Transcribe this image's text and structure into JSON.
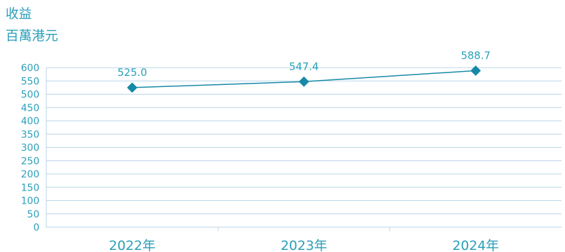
{
  "chart_data": {
    "type": "line",
    "title": "收益",
    "subtitle": "百萬港元",
    "categories": [
      "2022年",
      "2023年",
      "2024年"
    ],
    "series": [
      {
        "values": [
          525.0,
          547.4,
          588.7
        ],
        "data_labels": [
          "525.0",
          "547.4",
          "588.7"
        ]
      }
    ],
    "ylim": [
      0,
      600
    ],
    "yticks": [
      0,
      50,
      100,
      150,
      200,
      250,
      300,
      350,
      400,
      450,
      500,
      550,
      600
    ],
    "grid": true,
    "marker": "diamond",
    "colors": {
      "line": "#1589a6",
      "text": "#2a9fb8",
      "grid": "#b8d4e8"
    }
  }
}
